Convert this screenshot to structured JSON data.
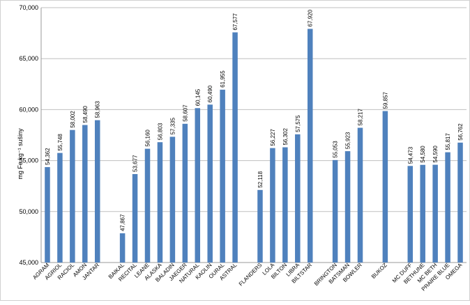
{
  "chart_data": {
    "type": "bar",
    "title": "",
    "xlabel": "",
    "ylabel": "mg Fe.kg⁻¹ sušiny",
    "ylim": [
      45000,
      70000
    ],
    "yticks": [
      45000,
      50000,
      55000,
      60000,
      65000,
      70000
    ],
    "ytick_labels": [
      "45,000",
      "50,000",
      "55,000",
      "60,000",
      "65,000",
      "70,000"
    ],
    "grid": true,
    "legend": "none",
    "bar_color": "#4f81bd",
    "groups": [
      {
        "categories": [
          "AGRAM",
          "AGRIOL",
          "RACIOL",
          "AMON",
          "JANTAR"
        ],
        "values": [
          54362,
          55748,
          58002,
          58490,
          58963
        ],
        "labels": [
          "54,362",
          "55,748",
          "58,002",
          "58,490",
          "58,963"
        ]
      },
      {
        "categories": [
          "BAIKAL",
          "RECITAL",
          "LEANE",
          "ALASKA",
          "BALADIN",
          "JAEGER",
          "NATURAL",
          "KAOLIN",
          "OURAL",
          "ASTRAL"
        ],
        "values": [
          47867,
          53677,
          56160,
          56803,
          57335,
          58607,
          60145,
          60490,
          61955,
          67577
        ],
        "labels": [
          "47,867",
          "53,677",
          "56,160",
          "56,803",
          "57,335",
          "58,607",
          "60,145",
          "60,490",
          "61,955",
          "67,577"
        ]
      },
      {
        "categories": [
          "FLANDERS",
          "LOLA",
          "BILTON",
          "LIBRA",
          "BILTSTAR"
        ],
        "values": [
          52118,
          56227,
          56302,
          57575,
          67920
        ],
        "labels": [
          "52,118",
          "56,227",
          "56,302",
          "57,575",
          "67,920"
        ]
      },
      {
        "categories": [
          "BRINGTON",
          "BATSMAN",
          "BOWLER"
        ],
        "values": [
          55053,
          55923,
          58217
        ],
        "labels": [
          "55,053",
          "55,923",
          "58,217"
        ]
      },
      {
        "categories": [
          "BUKOZ"
        ],
        "values": [
          59857
        ],
        "labels": [
          "59,857"
        ]
      },
      {
        "categories": [
          "MC DUFF",
          "BETHUNE",
          "MC BETH",
          "PRAIRE BLUE",
          "OMEGA"
        ],
        "values": [
          54473,
          54580,
          54590,
          55817,
          56762
        ],
        "labels": [
          "54,473",
          "54,580",
          "54,590",
          "55,817",
          "56,762"
        ]
      }
    ]
  }
}
